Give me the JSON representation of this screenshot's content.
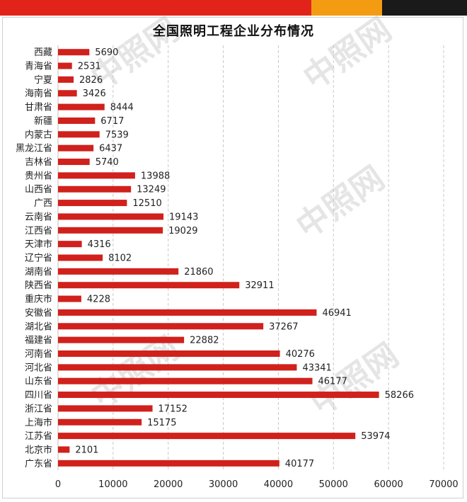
{
  "chart_data": {
    "type": "bar",
    "orientation": "horizontal",
    "title": "全国照明工程企业分布情况",
    "categories": [
      "西藏",
      "青海省",
      "宁夏",
      "海南省",
      "甘肃省",
      "新疆",
      "内蒙古",
      "黑龙江省",
      "吉林省",
      "贵州省",
      "山西省",
      "广西",
      "云南省",
      "江西省",
      "天津市",
      "辽宁省",
      "湖南省",
      "陕西省",
      "重庆市",
      "安徽省",
      "湖北省",
      "福建省",
      "河南省",
      "河北省",
      "山东省",
      "四川省",
      "浙江省",
      "上海市",
      "江苏省",
      "北京市",
      "广东省"
    ],
    "values": [
      5690,
      2531,
      2826,
      3426,
      8444,
      6717,
      7539,
      6437,
      5740,
      13988,
      13249,
      12510,
      19143,
      19029,
      4316,
      8102,
      21860,
      32911,
      4228,
      46941,
      37267,
      22882,
      40276,
      43341,
      46177,
      58266,
      17152,
      15175,
      53974,
      2101,
      40177
    ],
    "xlim": [
      0,
      70000
    ],
    "xticks": [
      0,
      10000,
      20000,
      30000,
      40000,
      50000,
      60000,
      70000
    ],
    "grid": "vertical-dashed",
    "bar_color": "#d0211c",
    "watermark": "中照网",
    "top_bar_colors": [
      "#e2231a",
      "#f39c12",
      "#1a1a1a"
    ]
  }
}
